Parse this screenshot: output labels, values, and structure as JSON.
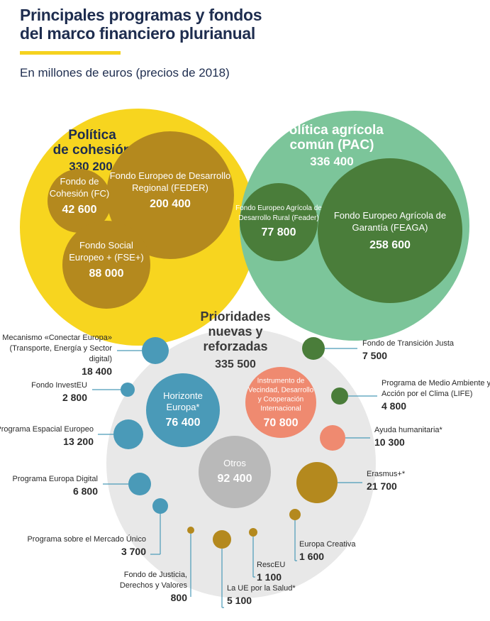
{
  "header": {
    "title_line1": "Principales programas y fondos",
    "title_line2": "del marco financiero plurianual",
    "subtitle": "En millones de euros (precios de 2018)"
  },
  "colors": {
    "title": "#1e2d4f",
    "accent": "#f5d21f",
    "cohesion_outer": "#f7d51f",
    "cohesion_inner": "#b4891e",
    "pac_outer": "#7cc59a",
    "pac_inner": "#4a7d3a",
    "priorities_outer": "#e8e8e8",
    "blue": "#4a9ab8",
    "green": "#4a7d3a",
    "salmon": "#ef8a70",
    "gold": "#b4891e",
    "gray": "#b9b9b9",
    "leader": "#4a9ab8",
    "label_text": "#2a2a2a"
  },
  "chart_data": {
    "type": "bubble",
    "unit": "millones de euros (precios de 2018)",
    "groups": [
      {
        "id": "cohesion",
        "label_lines": [
          "Política",
          "de cohesión"
        ],
        "value": 330200,
        "value_label": "330 200",
        "children": [
          {
            "name_lines": [
              "Fondo Europeo de Desarrollo",
              "Regional (FEDER)"
            ],
            "value": 200400,
            "value_label": "200 400"
          },
          {
            "name_lines": [
              "Fondo de",
              "Cohesión (FC)"
            ],
            "value": 42600,
            "value_label": "42 600"
          },
          {
            "name_lines": [
              "Fondo Social",
              "Europeo + (FSE+)"
            ],
            "value": 88000,
            "value_label": "88 000"
          }
        ]
      },
      {
        "id": "pac",
        "label_lines": [
          "Política agrícola",
          "común (PAC)"
        ],
        "value": 336400,
        "value_label": "336 400",
        "children": [
          {
            "name_lines": [
              "Fondo Europeo Agrícola de",
              "Desarrollo Rural (Feader)"
            ],
            "value": 77800,
            "value_label": "77 800"
          },
          {
            "name_lines": [
              "Fondo Europeo Agrícola de",
              "Garantía (FEAGA)"
            ],
            "value": 258600,
            "value_label": "258 600"
          }
        ]
      },
      {
        "id": "prioridades",
        "label_lines": [
          "Prioridades",
          "nuevas y",
          "reforzadas"
        ],
        "value": 335500,
        "value_label": "335 500",
        "inner_children": [
          {
            "name_lines": [
              "Horizonte",
              "Europa*"
            ],
            "value": 76400,
            "value_label": "76 400"
          },
          {
            "name_lines": [
              "Instrumento de",
              "Vecindad, Desarrollo",
              "y Cooperación",
              "Internacional"
            ],
            "value": 70800,
            "value_label": "70 800"
          },
          {
            "name_lines": [
              "Otros"
            ],
            "value": 92400,
            "value_label": "92 400"
          }
        ],
        "outer_children": [
          {
            "name_lines": [
              "Mecanismo «Conectar Europa»",
              "(Transporte, Energía y Sector",
              "digital)"
            ],
            "value": 18400,
            "value_label": "18 400"
          },
          {
            "name_lines": [
              "Fondo InvestEU"
            ],
            "value": 2800,
            "value_label": "2 800"
          },
          {
            "name_lines": [
              "Programa Espacial Europeo"
            ],
            "value": 13200,
            "value_label": "13 200"
          },
          {
            "name_lines": [
              "Programa Europa Digital"
            ],
            "value": 6800,
            "value_label": "6 800"
          },
          {
            "name_lines": [
              "Programa sobre el Mercado Único"
            ],
            "value": 3700,
            "value_label": "3 700"
          },
          {
            "name_lines": [
              "Fondo de Justicia,",
              "Derechos y Valores"
            ],
            "value": 800,
            "value_label": "800"
          },
          {
            "name_lines": [
              "La UE por la Salud*"
            ],
            "value": 5100,
            "value_label": "5 100"
          },
          {
            "name_lines": [
              "RescEU"
            ],
            "value": 1100,
            "value_label": "1 100"
          },
          {
            "name_lines": [
              "Europa Creativa"
            ],
            "value": 1600,
            "value_label": "1 600"
          },
          {
            "name_lines": [
              "Erasmus+*"
            ],
            "value": 21700,
            "value_label": "21 700"
          },
          {
            "name_lines": [
              "Ayuda humanitaria*"
            ],
            "value": 10300,
            "value_label": "10 300"
          },
          {
            "name_lines": [
              "Programa de Medio Ambiente y",
              "Acción por el Clima (LIFE)"
            ],
            "value": 4800,
            "value_label": "4 800"
          },
          {
            "name_lines": [
              "Fondo de Transición Justa"
            ],
            "value": 7500,
            "value_label": "7 500"
          }
        ]
      }
    ]
  }
}
